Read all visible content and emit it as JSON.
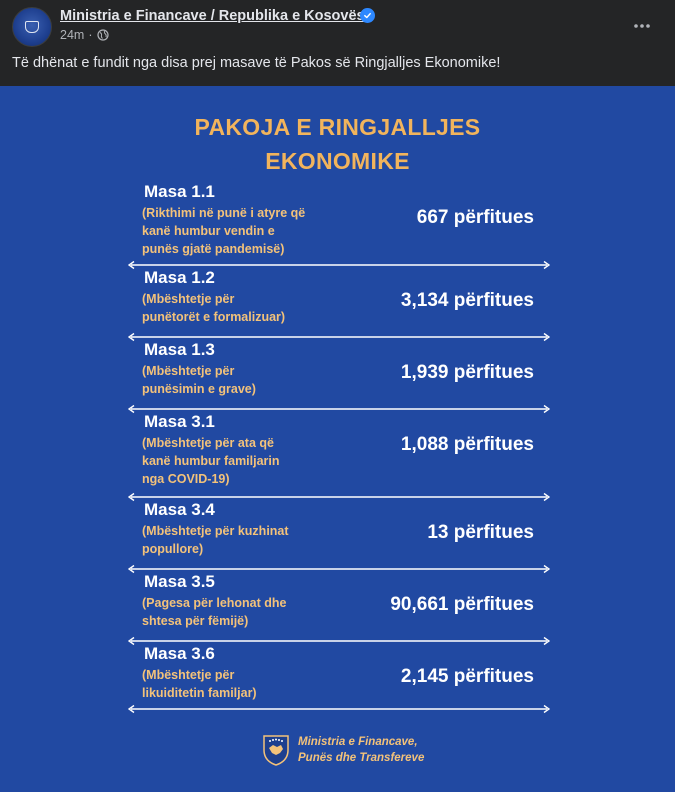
{
  "post": {
    "page_name": "Ministria e Financave / Republika e Kosovës",
    "time": "24m",
    "separator": "·",
    "caption": "Të dhënat e fundit nga disa prej masave të Pakos së Ringjalljes Ekonomike!"
  },
  "infographic": {
    "title_line1": "PAKOJA E RINGJALLJES",
    "title_line2": "EKONOMIKE",
    "rows": [
      {
        "masa": "Masa 1.1",
        "desc": [
          "(Rikthimi në punë i atyre që",
          "kanë humbur vendin e",
          "punës gjatë pandemisë)"
        ],
        "value": "667 përfitues"
      },
      {
        "masa": "Masa 1.2",
        "desc": [
          "(Mbështetje për",
          "punëtorët e formalizuar)"
        ],
        "value": "3,134 përfitues"
      },
      {
        "masa": "Masa 1.3",
        "desc": [
          "(Mbështetje për",
          "punësimin e grave)"
        ],
        "value": "1,939 përfitues"
      },
      {
        "masa": "Masa 3.1",
        "desc": [
          "(Mbështetje për ata që",
          "kanë humbur familjarin",
          "nga COVID-19)"
        ],
        "value": "1,088 përfitues"
      },
      {
        "masa": "Masa 3.4",
        "desc": [
          "(Mbështetje për kuzhinat",
          "popullore)"
        ],
        "value": "13 përfitues"
      },
      {
        "masa": "Masa 3.5",
        "desc": [
          "(Pagesa për lehonat dhe",
          "shtesa për fëmijë)"
        ],
        "value": "90,661 përfitues"
      },
      {
        "masa": "Masa 3.6",
        "desc": [
          "(Mbështetje për",
          "likuiditetin familjar)"
        ],
        "value": "2,145 përfitues"
      }
    ],
    "footer_line1": "Ministria e Financave,",
    "footer_line2": "Punës dhe Transfereve"
  },
  "colors": {
    "background": "#242526",
    "infographic_bg": "#2149a2",
    "accent": "#f2b45c",
    "verified": "#2d88ff"
  },
  "icons": [
    "verified-badge-icon",
    "globe-icon",
    "more-options-icon",
    "kosovo-emblem-icon"
  ]
}
